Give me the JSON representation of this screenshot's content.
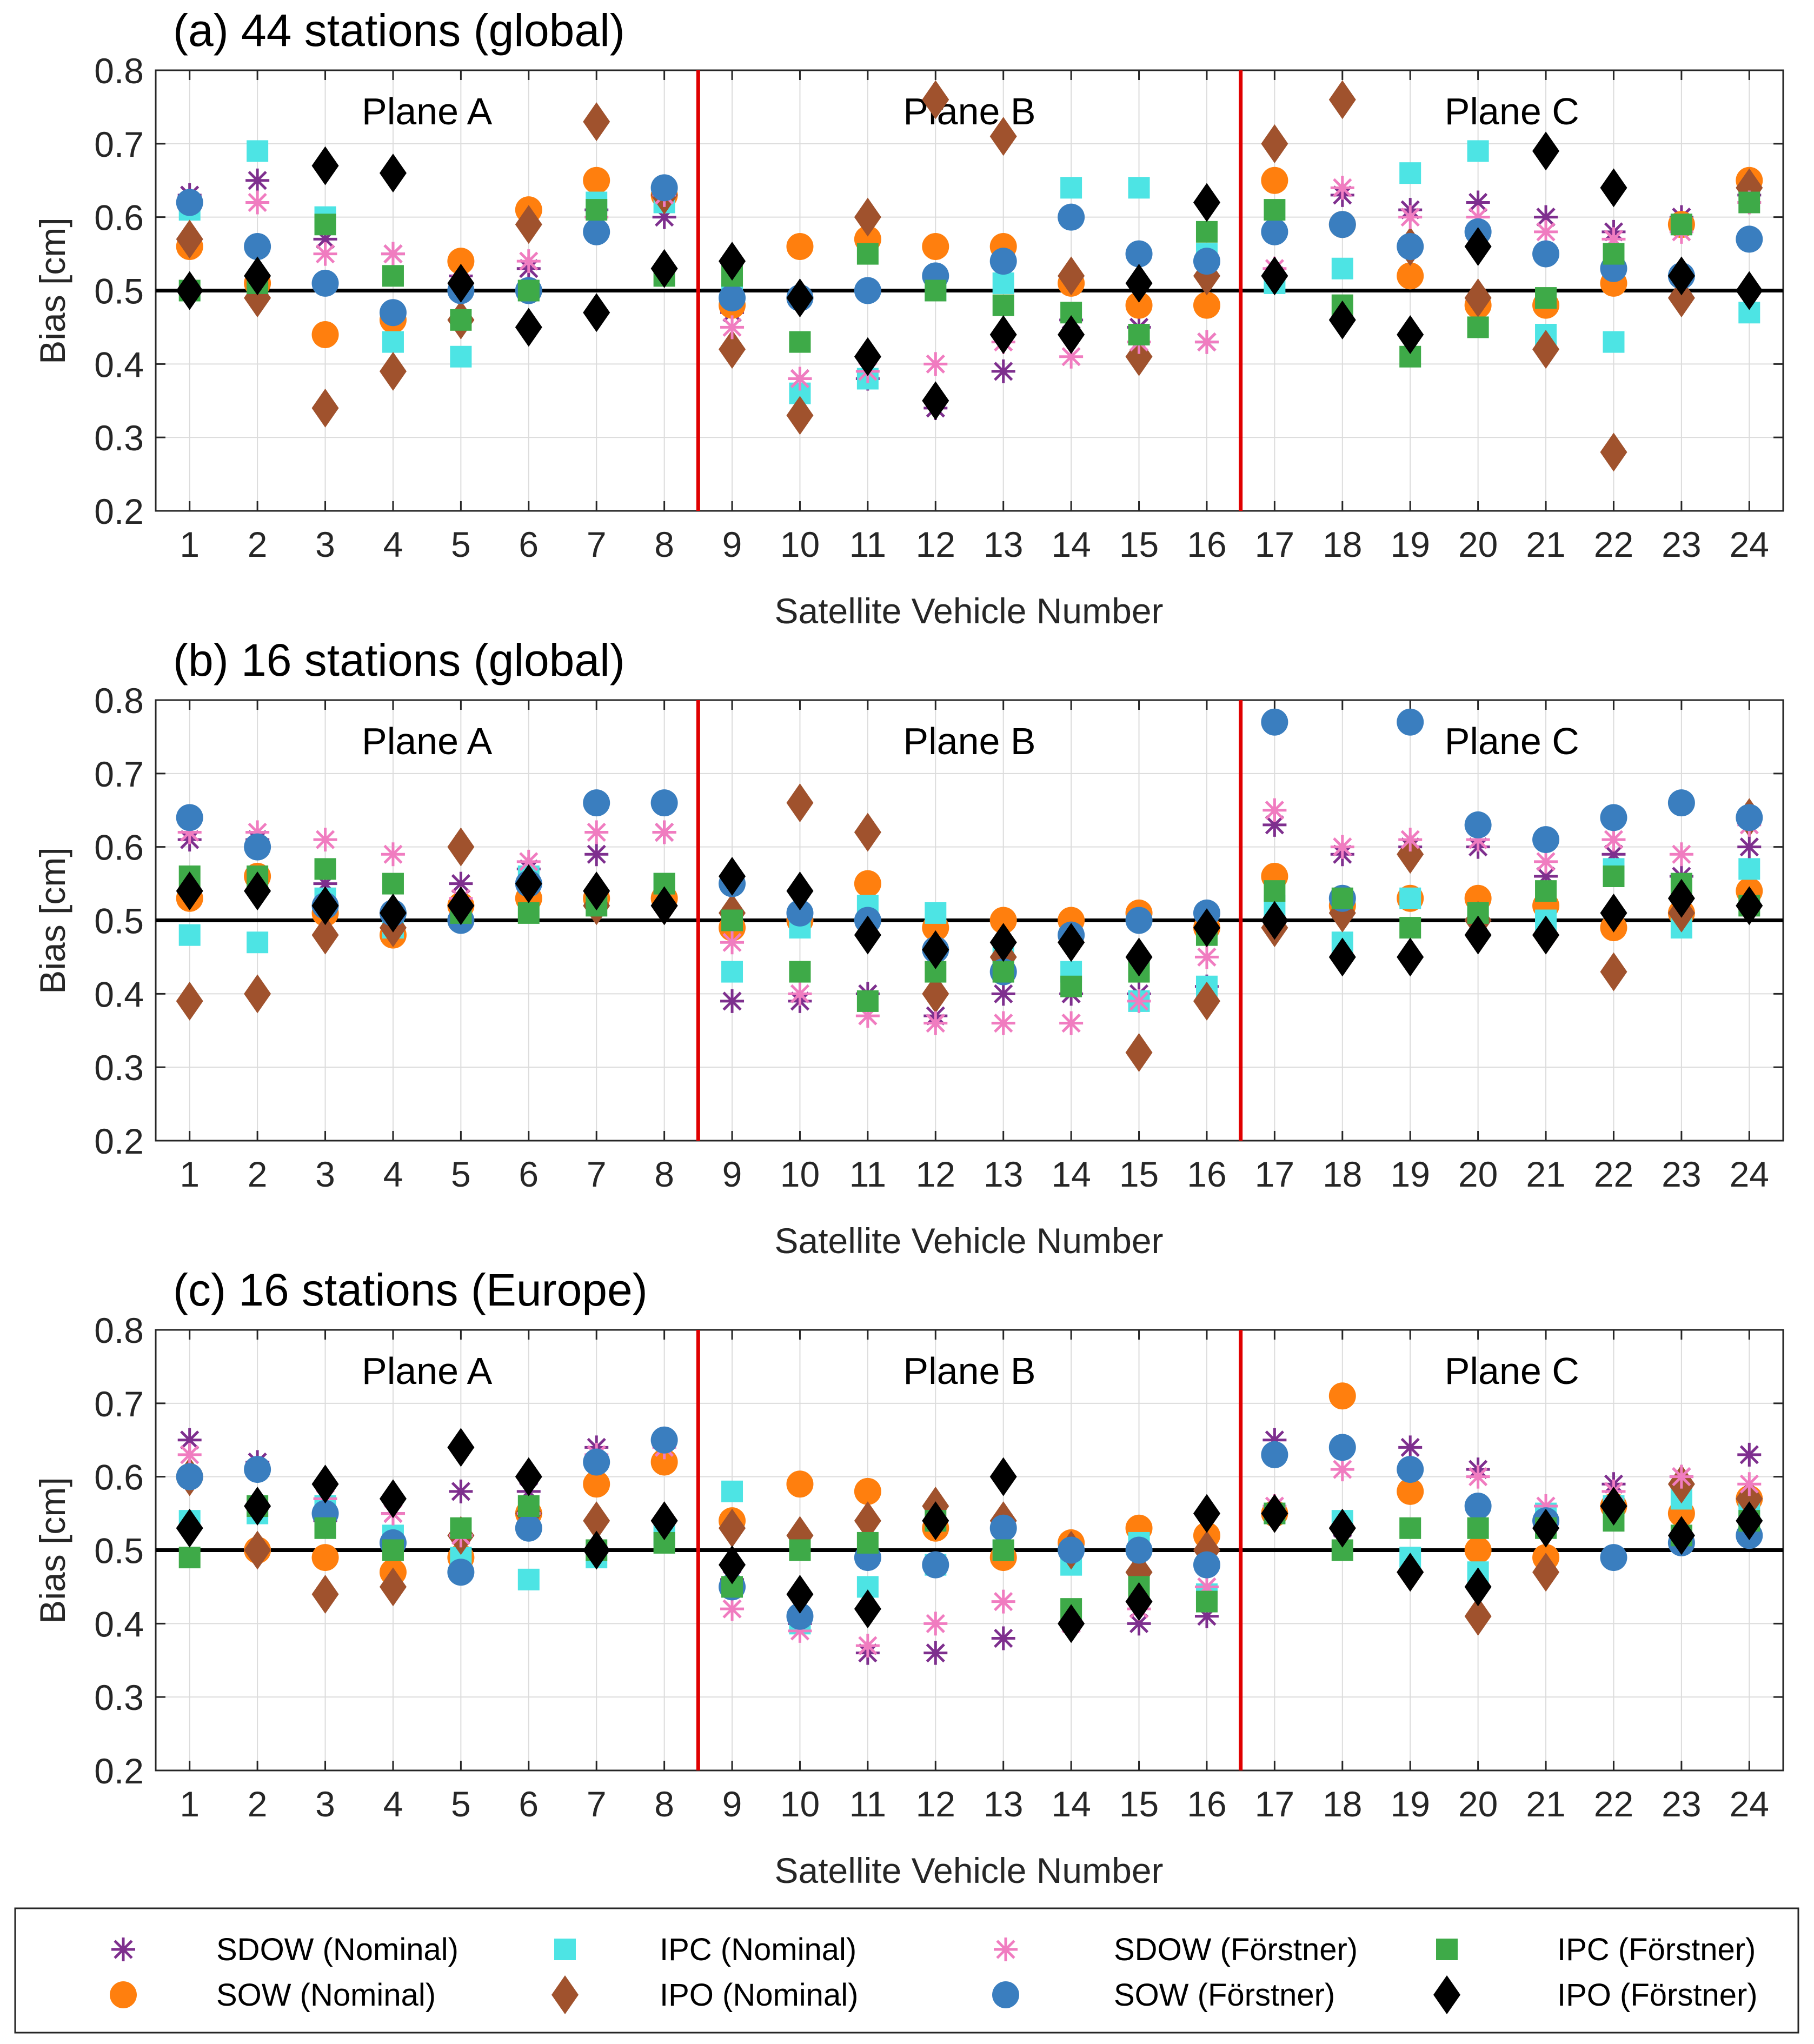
{
  "colors": {
    "SDOW (Nominal)": "#7E2F8E",
    "SOW (Nominal)": "#FF7F0E",
    "IPC (Nominal)": "#4DE4E4",
    "IPO (Nominal)": "#A0522D",
    "SDOW (Förstner)": "#F07CC0",
    "SOW (Förstner)": "#3A7EBF",
    "IPC (Förstner)": "#3EAA48",
    "IPO (Förstner)": "#000000",
    "reference_line": "#000000",
    "plane_divider": "#E00000",
    "grid": "#DCDCDC"
  },
  "legend": {
    "entries": [
      {
        "label": "SDOW (Nominal)",
        "marker": "asterisk-icon"
      },
      {
        "label": "SOW (Nominal)",
        "marker": "circle-icon"
      },
      {
        "label": "IPC (Nominal)",
        "marker": "square-icon"
      },
      {
        "label": "IPO (Nominal)",
        "marker": "diamond-icon"
      },
      {
        "label": "SDOW (Förstner)",
        "marker": "asterisk-icon"
      },
      {
        "label": "SOW (Förstner)",
        "marker": "circle-icon"
      },
      {
        "label": "IPC (Förstner)",
        "marker": "square-icon"
      },
      {
        "label": "IPO (Förstner)",
        "marker": "diamond-icon"
      }
    ]
  },
  "chart_data": [
    {
      "type": "scatter",
      "title": "(a) 44 stations (global)",
      "xlabel": "Satellite Vehicle Number",
      "ylabel": "Bias [cm]",
      "ylim": [
        0.2,
        0.8
      ],
      "yticks": [
        "0.2",
        "0.3",
        "0.4",
        "0.5",
        "0.6",
        "0.7",
        "0.8"
      ],
      "categories": [
        "1",
        "2",
        "3",
        "4",
        "5",
        "6",
        "7",
        "8",
        "9",
        "10",
        "11",
        "12",
        "13",
        "14",
        "15",
        "16",
        "17",
        "18",
        "19",
        "20",
        "21",
        "22",
        "23",
        "24"
      ],
      "grid": true,
      "reference_line": 0.5,
      "plane_dividers": [
        8.5,
        16.5
      ],
      "plane_labels": [
        {
          "text": "Plane A",
          "center": 4.5
        },
        {
          "text": "Plane B",
          "center": 12.5
        },
        {
          "text": "Plane C",
          "center": 20.5
        }
      ],
      "series": [
        {
          "name": "SDOW (Nominal)",
          "values": [
            0.63,
            0.65,
            0.57,
            0.55,
            0.52,
            0.53,
            0.61,
            0.6,
            0.47,
            0.38,
            0.38,
            0.34,
            0.39,
            0.46,
            0.45,
            0.43,
            0.52,
            0.63,
            0.61,
            0.62,
            0.6,
            0.58,
            0.6,
            0.63
          ]
        },
        {
          "name": "SOW (Nominal)",
          "values": [
            0.56,
            0.51,
            0.44,
            0.46,
            0.54,
            0.61,
            0.65,
            0.63,
            0.48,
            0.56,
            0.57,
            0.56,
            0.56,
            0.51,
            0.48,
            0.48,
            0.65,
            0.59,
            0.52,
            0.48,
            0.48,
            0.51,
            0.59,
            0.65
          ]
        },
        {
          "name": "IPC (Nominal)",
          "values": [
            0.61,
            0.69,
            0.6,
            0.43,
            0.41,
            0.5,
            0.62,
            0.62,
            0.5,
            0.36,
            0.38,
            0.5,
            0.51,
            0.64,
            0.64,
            0.55,
            0.51,
            0.53,
            0.66,
            0.69,
            0.44,
            0.43,
            0.59,
            0.47
          ]
        },
        {
          "name": "IPO (Nominal)",
          "values": [
            0.57,
            0.49,
            0.34,
            0.39,
            0.46,
            0.59,
            0.73,
            0.63,
            0.42,
            0.33,
            0.6,
            0.76,
            0.71,
            0.52,
            0.41,
            0.52,
            0.7,
            0.76,
            0.56,
            0.49,
            0.42,
            0.28,
            0.49,
            0.64
          ]
        },
        {
          "name": "SDOW (Förstner)",
          "values": [
            0.62,
            0.62,
            0.55,
            0.55,
            0.51,
            0.54,
            0.6,
            0.63,
            0.45,
            0.38,
            0.39,
            0.4,
            0.43,
            0.41,
            0.43,
            0.43,
            0.53,
            0.64,
            0.6,
            0.6,
            0.58,
            0.57,
            0.58,
            0.62
          ]
        },
        {
          "name": "SOW (Förstner)",
          "values": [
            0.62,
            0.56,
            0.51,
            0.47,
            0.5,
            0.5,
            0.58,
            0.64,
            0.49,
            0.49,
            0.5,
            0.52,
            0.54,
            0.6,
            0.55,
            0.54,
            0.58,
            0.59,
            0.56,
            0.58,
            0.55,
            0.53,
            0.52,
            0.57
          ]
        },
        {
          "name": "IPC (Förstner)",
          "values": [
            0.5,
            0.51,
            0.59,
            0.52,
            0.46,
            0.5,
            0.61,
            0.52,
            0.52,
            0.43,
            0.55,
            0.5,
            0.48,
            0.47,
            0.44,
            0.58,
            0.61,
            0.48,
            0.41,
            0.45,
            0.49,
            0.55,
            0.59,
            0.62
          ]
        },
        {
          "name": "IPO (Förstner)",
          "values": [
            0.5,
            0.52,
            0.67,
            0.66,
            0.51,
            0.45,
            0.47,
            0.53,
            0.54,
            0.49,
            0.41,
            0.35,
            0.44,
            0.44,
            0.51,
            0.62,
            0.52,
            0.46,
            0.44,
            0.56,
            0.69,
            0.64,
            0.52,
            0.5
          ]
        }
      ]
    },
    {
      "type": "scatter",
      "title": "(b) 16 stations (global)",
      "xlabel": "Satellite Vehicle Number",
      "ylabel": "Bias [cm]",
      "ylim": [
        0.2,
        0.8
      ],
      "yticks": [
        "0.2",
        "0.3",
        "0.4",
        "0.5",
        "0.6",
        "0.7",
        "0.8"
      ],
      "categories": [
        "1",
        "2",
        "3",
        "4",
        "5",
        "6",
        "7",
        "8",
        "9",
        "10",
        "11",
        "12",
        "13",
        "14",
        "15",
        "16",
        "17",
        "18",
        "19",
        "20",
        "21",
        "22",
        "23",
        "24"
      ],
      "grid": true,
      "reference_line": 0.5,
      "plane_dividers": [
        8.5,
        16.5
      ],
      "plane_labels": [
        {
          "text": "Plane A",
          "center": 4.5
        },
        {
          "text": "Plane B",
          "center": 12.5
        },
        {
          "text": "Plane C",
          "center": 20.5
        }
      ],
      "series": [
        {
          "name": "SDOW (Nominal)",
          "values": [
            0.61,
            0.61,
            0.55,
            0.51,
            0.55,
            0.57,
            0.59,
            0.62,
            0.39,
            0.39,
            0.4,
            0.37,
            0.4,
            0.4,
            0.4,
            0.41,
            0.63,
            0.59,
            0.6,
            0.6,
            0.56,
            0.59,
            0.56,
            0.6
          ]
        },
        {
          "name": "SOW (Nominal)",
          "values": [
            0.53,
            0.56,
            0.51,
            0.48,
            0.52,
            0.53,
            0.53,
            0.53,
            0.49,
            0.5,
            0.55,
            0.49,
            0.5,
            0.5,
            0.51,
            0.49,
            0.56,
            0.52,
            0.53,
            0.53,
            0.52,
            0.49,
            0.51,
            0.54
          ]
        },
        {
          "name": "IPC (Nominal)",
          "values": [
            0.48,
            0.47,
            0.53,
            0.49,
            0.51,
            0.56,
            0.53,
            0.55,
            0.43,
            0.49,
            0.52,
            0.51,
            0.45,
            0.43,
            0.39,
            0.41,
            0.52,
            0.47,
            0.53,
            0.51,
            0.5,
            0.57,
            0.49,
            0.57
          ]
        },
        {
          "name": "IPO (Nominal)",
          "values": [
            0.39,
            0.4,
            0.48,
            0.49,
            0.6,
            0.55,
            0.52,
            0.52,
            0.51,
            0.66,
            0.62,
            0.4,
            0.45,
            0.47,
            0.32,
            0.39,
            0.49,
            0.51,
            0.59,
            0.5,
            0.48,
            0.43,
            0.51,
            0.64
          ]
        },
        {
          "name": "SDOW (Förstner)",
          "values": [
            0.62,
            0.62,
            0.61,
            0.59,
            0.53,
            0.58,
            0.62,
            0.62,
            0.47,
            0.4,
            0.37,
            0.36,
            0.36,
            0.36,
            0.39,
            0.45,
            0.65,
            0.6,
            0.61,
            0.61,
            0.58,
            0.61,
            0.59,
            0.63
          ]
        },
        {
          "name": "SOW (Förstner)",
          "values": [
            0.64,
            0.6,
            0.52,
            0.51,
            0.5,
            0.55,
            0.66,
            0.66,
            0.55,
            0.51,
            0.5,
            0.46,
            0.43,
            0.48,
            0.5,
            0.51,
            0.77,
            0.53,
            0.77,
            0.63,
            0.61,
            0.64,
            0.66,
            0.64
          ]
        },
        {
          "name": "IPC (Förstner)",
          "values": [
            0.56,
            0.56,
            0.57,
            0.55,
            0.51,
            0.51,
            0.52,
            0.55,
            0.5,
            0.43,
            0.39,
            0.43,
            0.43,
            0.41,
            0.43,
            0.48,
            0.54,
            0.53,
            0.49,
            0.51,
            0.54,
            0.56,
            0.55,
            0.52
          ]
        },
        {
          "name": "IPO (Förstner)",
          "values": [
            0.54,
            0.54,
            0.52,
            0.51,
            0.52,
            0.55,
            0.54,
            0.52,
            0.56,
            0.54,
            0.48,
            0.46,
            0.47,
            0.47,
            0.45,
            0.49,
            0.5,
            0.45,
            0.45,
            0.48,
            0.48,
            0.51,
            0.53,
            0.52
          ]
        }
      ]
    },
    {
      "type": "scatter",
      "title": "(c) 16 stations (Europe)",
      "xlabel": "Satellite Vehicle Number",
      "ylabel": "Bias [cm]",
      "ylim": [
        0.2,
        0.8
      ],
      "yticks": [
        "0.2",
        "0.3",
        "0.4",
        "0.5",
        "0.6",
        "0.7",
        "0.8"
      ],
      "categories": [
        "1",
        "2",
        "3",
        "4",
        "5",
        "6",
        "7",
        "8",
        "9",
        "10",
        "11",
        "12",
        "13",
        "14",
        "15",
        "16",
        "17",
        "18",
        "19",
        "20",
        "21",
        "22",
        "23",
        "24"
      ],
      "grid": true,
      "reference_line": 0.5,
      "plane_dividers": [
        8.5,
        16.5
      ],
      "plane_labels": [
        {
          "text": "Plane A",
          "center": 4.5
        },
        {
          "text": "Plane B",
          "center": 12.5
        },
        {
          "text": "Plane C",
          "center": 20.5
        }
      ],
      "series": [
        {
          "name": "SDOW (Nominal)",
          "values": [
            0.65,
            0.62,
            0.54,
            0.55,
            0.58,
            0.58,
            0.64,
            0.65,
            0.46,
            0.4,
            0.36,
            0.36,
            0.38,
            0.4,
            0.4,
            0.41,
            0.65,
            0.53,
            0.64,
            0.61,
            0.54,
            0.59,
            0.6,
            0.63
          ]
        },
        {
          "name": "SOW (Nominal)",
          "values": [
            0.6,
            0.5,
            0.49,
            0.47,
            0.49,
            0.55,
            0.59,
            0.62,
            0.54,
            0.59,
            0.58,
            0.53,
            0.49,
            0.51,
            0.53,
            0.52,
            0.55,
            0.71,
            0.58,
            0.5,
            0.49,
            0.56,
            0.55,
            0.57
          ]
        },
        {
          "name": "IPC (Nominal)",
          "values": [
            0.54,
            0.55,
            0.56,
            0.52,
            0.49,
            0.46,
            0.49,
            0.52,
            0.58,
            0.4,
            0.45,
            0.48,
            0.5,
            0.48,
            0.51,
            0.44,
            0.55,
            0.54,
            0.49,
            0.47,
            0.55,
            0.56,
            0.57,
            0.56
          ]
        },
        {
          "name": "IPO (Nominal)",
          "values": [
            0.6,
            0.5,
            0.44,
            0.45,
            0.52,
            0.55,
            0.54,
            0.54,
            0.53,
            0.52,
            0.54,
            0.56,
            0.54,
            0.5,
            0.47,
            0.5,
            0.55,
            0.53,
            0.47,
            0.41,
            0.47,
            0.56,
            0.59,
            0.57
          ]
        },
        {
          "name": "SDOW (Förstner)",
          "values": [
            0.63,
            0.61,
            0.57,
            0.55,
            0.52,
            0.55,
            0.63,
            0.64,
            0.42,
            0.39,
            0.37,
            0.4,
            0.43,
            0.4,
            0.42,
            0.45,
            0.56,
            0.61,
            0.61,
            0.6,
            0.56,
            0.58,
            0.6,
            0.59
          ]
        },
        {
          "name": "SOW (Förstner)",
          "values": [
            0.6,
            0.61,
            0.55,
            0.51,
            0.47,
            0.53,
            0.62,
            0.65,
            0.45,
            0.41,
            0.49,
            0.48,
            0.53,
            0.5,
            0.5,
            0.48,
            0.63,
            0.64,
            0.61,
            0.56,
            0.54,
            0.49,
            0.51,
            0.52
          ]
        },
        {
          "name": "IPC (Förstner)",
          "values": [
            0.49,
            0.56,
            0.53,
            0.5,
            0.53,
            0.56,
            0.5,
            0.51,
            0.45,
            0.5,
            0.51,
            0.54,
            0.5,
            0.42,
            0.45,
            0.43,
            0.55,
            0.5,
            0.53,
            0.53,
            0.53,
            0.54,
            0.52,
            0.54
          ]
        },
        {
          "name": "IPO (Förstner)",
          "values": [
            0.53,
            0.56,
            0.59,
            0.57,
            0.64,
            0.6,
            0.5,
            0.54,
            0.48,
            0.44,
            0.42,
            0.54,
            0.6,
            0.4,
            0.43,
            0.55,
            0.55,
            0.53,
            0.47,
            0.45,
            0.53,
            0.56,
            0.52,
            0.54
          ]
        }
      ]
    }
  ]
}
